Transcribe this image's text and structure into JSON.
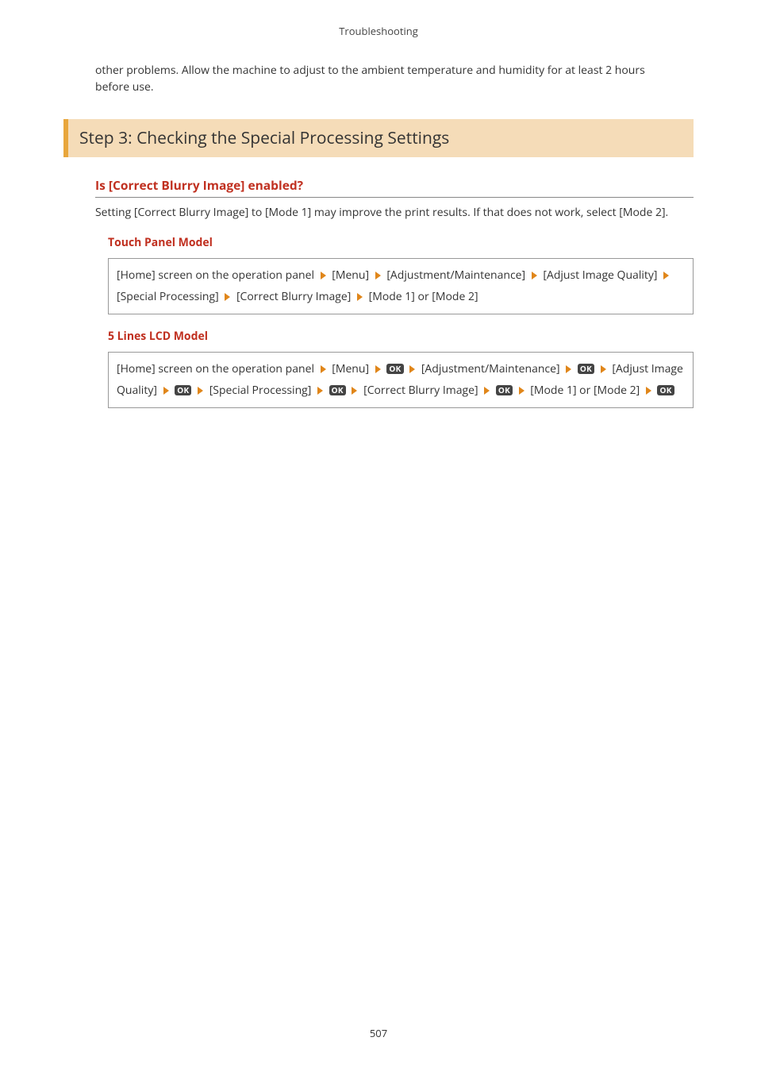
{
  "header": "Troubleshooting",
  "intro": "other problems. Allow the machine to adjust to the ambient temperature and humidity for at least 2 hours before use.",
  "step_heading": "Step 3: Checking the Special Processing Settings",
  "question": "Is [Correct Blurry Image] enabled?",
  "answer": "Setting [Correct Blurry Image] to [Mode 1] may improve the print results. If that does not work, select [Mode 2].",
  "touch_label": "Touch Panel Model",
  "lcd_label": "5 Lines LCD Model",
  "touch_nav": {
    "p1": "[Home] screen on the operation panel",
    "p2": "[Menu]",
    "p3": "[Adjustment/Maintenance]",
    "p4": "[Adjust Image Quality]",
    "p5": "[Special Processing]",
    "p6": "[Correct Blurry Image]",
    "p7": "[Mode 1] or [Mode 2]"
  },
  "lcd_nav": {
    "p1": "[Home] screen on the operation panel",
    "p2": "[Menu]",
    "p3": "[Adjustment/Maintenance]",
    "p4": "[Adjust Image Quality]",
    "p5": "[Special Processing]",
    "p6": "[Correct Blurry Image]",
    "p7": "[Mode 1] or [Mode 2]"
  },
  "ok": "OK",
  "page_number": "507",
  "colors": {
    "accent_bg": "#f5dcb8",
    "accent_border": "#e8a63c",
    "warn_text": "#c03020",
    "arrow": "#e0861a",
    "ok_bg": "#444444"
  }
}
